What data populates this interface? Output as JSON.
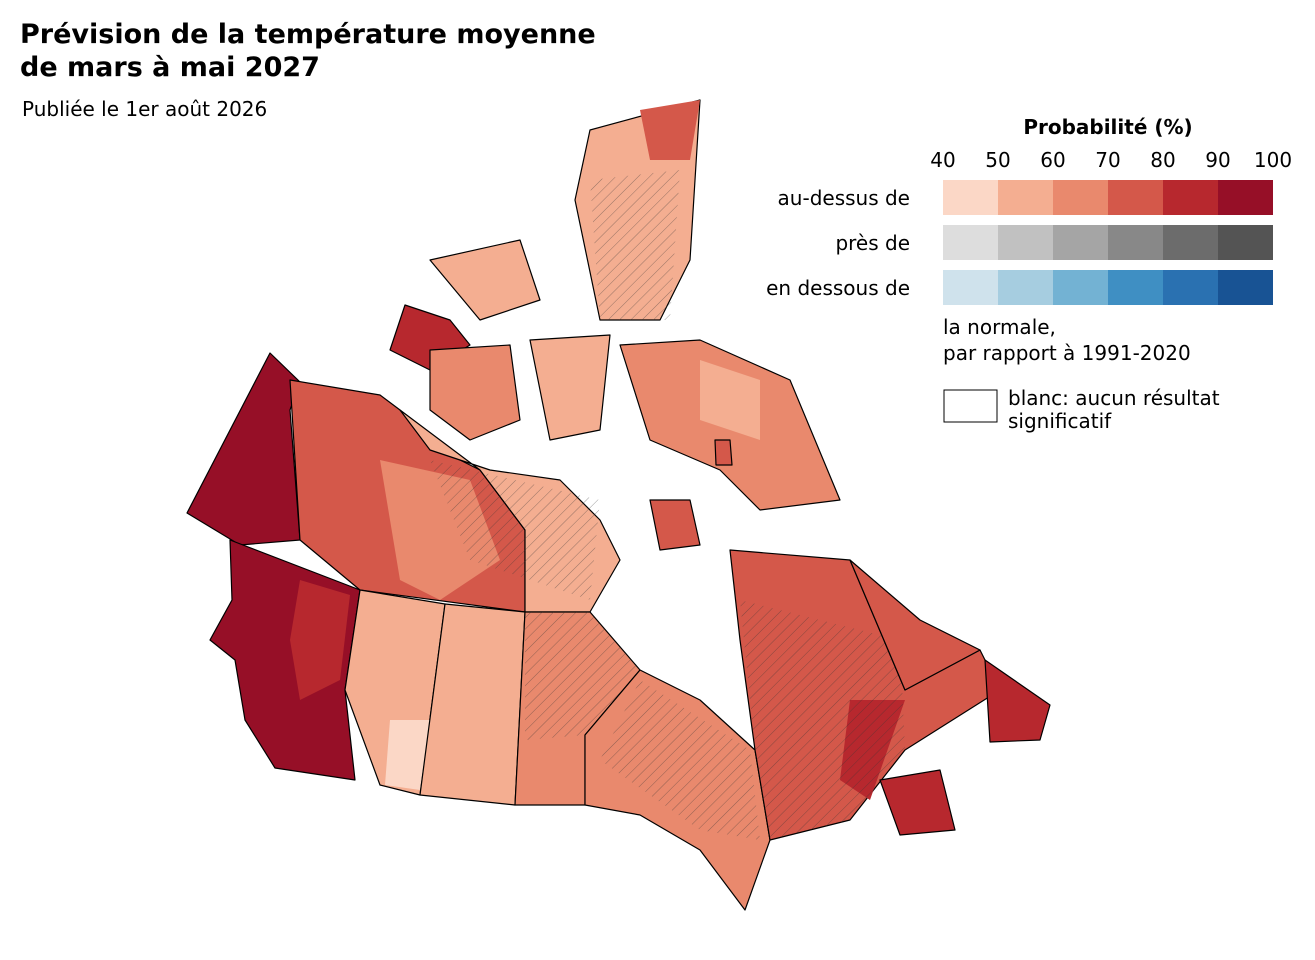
{
  "header": {
    "title_lines": [
      "Prévision de la température moyenne",
      "de mars à mai 2027"
    ],
    "subtitle": "Publiée le 1er août 2026"
  },
  "legend": {
    "title": "Probabilité (%)",
    "ticks": [
      40,
      50,
      60,
      70,
      80,
      90,
      100
    ],
    "rows": [
      {
        "label": "au-dessus de",
        "colors": [
          "#fbd7c6",
          "#f4ae91",
          "#e9896d",
          "#d4584a",
          "#b7282e",
          "#960f27"
        ]
      },
      {
        "label": "près de",
        "colors": [
          "#dddddd",
          "#c1c1c1",
          "#a5a5a5",
          "#888888",
          "#6c6c6c",
          "#545454"
        ]
      },
      {
        "label": "en dessous de",
        "colors": [
          "#cfe2ec",
          "#a6cde0",
          "#73b2d3",
          "#3f8fc3",
          "#2a71b1",
          "#185394"
        ]
      }
    ],
    "note_lines": [
      "la normale,",
      "par rapport à 1991-2020"
    ],
    "blank_lines": [
      "blanc: aucun résultat",
      "significatif"
    ]
  }
}
